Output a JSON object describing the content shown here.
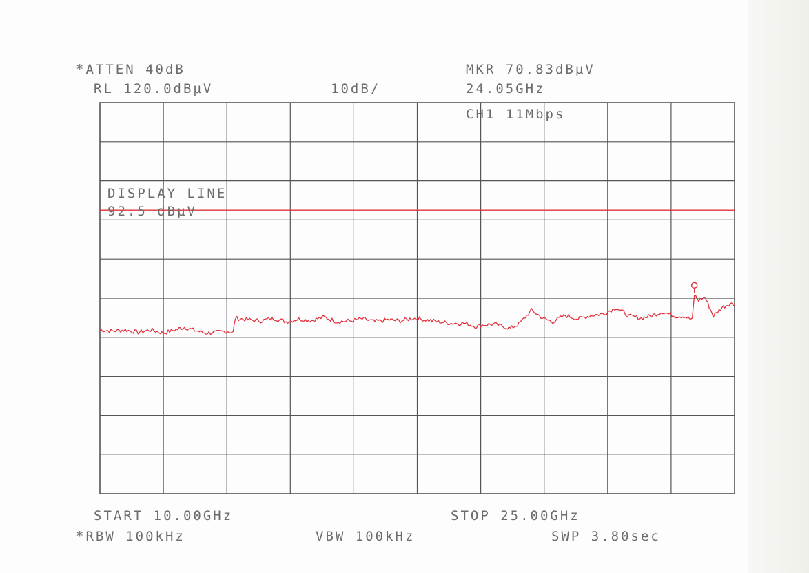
{
  "header": {
    "atten": "*ATTEN 40dB",
    "ref_level": "RL 120.0dBµV",
    "scale": "10dB/",
    "marker_level": "MKR 70.83dBµV",
    "marker_freq": "24.05GHz",
    "channel": "CH1 11Mbps"
  },
  "display_line": {
    "label": "DISPLAY LINE",
    "value_label": "92.5 dBµV"
  },
  "footer": {
    "start": "START 10.00GHz",
    "stop": "STOP 25.00GHz",
    "rbw": "*RBW 100kHz",
    "vbw": "VBW 100kHz",
    "sweep": "SWP 3.80sec"
  },
  "colors": {
    "grid": "#555555",
    "trace": "#e0323c",
    "text": "#6c6c6c"
  },
  "chart_data": {
    "type": "line",
    "xlim": [
      10.0,
      25.0
    ],
    "ylim": [
      20.0,
      120.0
    ],
    "y_div": 10,
    "x_div": 10,
    "reference_line": 92.5,
    "marker": {
      "x": 24.05,
      "y": 70.83
    },
    "series": [
      {
        "x": [
          10.0,
          10.3,
          10.6,
          10.9,
          11.2,
          11.5,
          11.8,
          12.0,
          12.2,
          12.5,
          12.8,
          13.0,
          13.15,
          13.2,
          13.5,
          13.8,
          14.1,
          14.4,
          14.7,
          15.0,
          15.3,
          15.6,
          15.9,
          16.2,
          16.5,
          16.8,
          17.1,
          17.4,
          17.7,
          18.0,
          18.3,
          18.6,
          18.9,
          19.0,
          19.3,
          19.6,
          19.7,
          19.9,
          20.2,
          20.5,
          20.7,
          21.0,
          21.3,
          21.6,
          21.9,
          22.2,
          22.5,
          22.8,
          23.0,
          23.3,
          23.6,
          23.8,
          24.0,
          24.05,
          24.15,
          24.3,
          24.5,
          24.7,
          24.9,
          25.0
        ],
        "y": [
          61.9,
          61.6,
          61.9,
          61.3,
          61.9,
          61.1,
          62.0,
          62.6,
          61.9,
          61.1,
          61.3,
          61.6,
          61.3,
          64.9,
          64.5,
          64.2,
          64.9,
          64.0,
          64.7,
          64.3,
          65.2,
          64.0,
          64.2,
          64.7,
          64.0,
          64.5,
          64.2,
          64.9,
          64.5,
          64.0,
          63.6,
          63.6,
          62.8,
          63.1,
          63.4,
          62.6,
          62.3,
          63.4,
          66.9,
          64.7,
          64.0,
          65.6,
          64.7,
          65.6,
          66.0,
          67.6,
          65.4,
          64.9,
          65.4,
          66.5,
          65.4,
          65.4,
          64.5,
          70.8,
          69.5,
          70.3,
          65.4,
          67.6,
          68.7,
          68.2
        ]
      }
    ]
  }
}
